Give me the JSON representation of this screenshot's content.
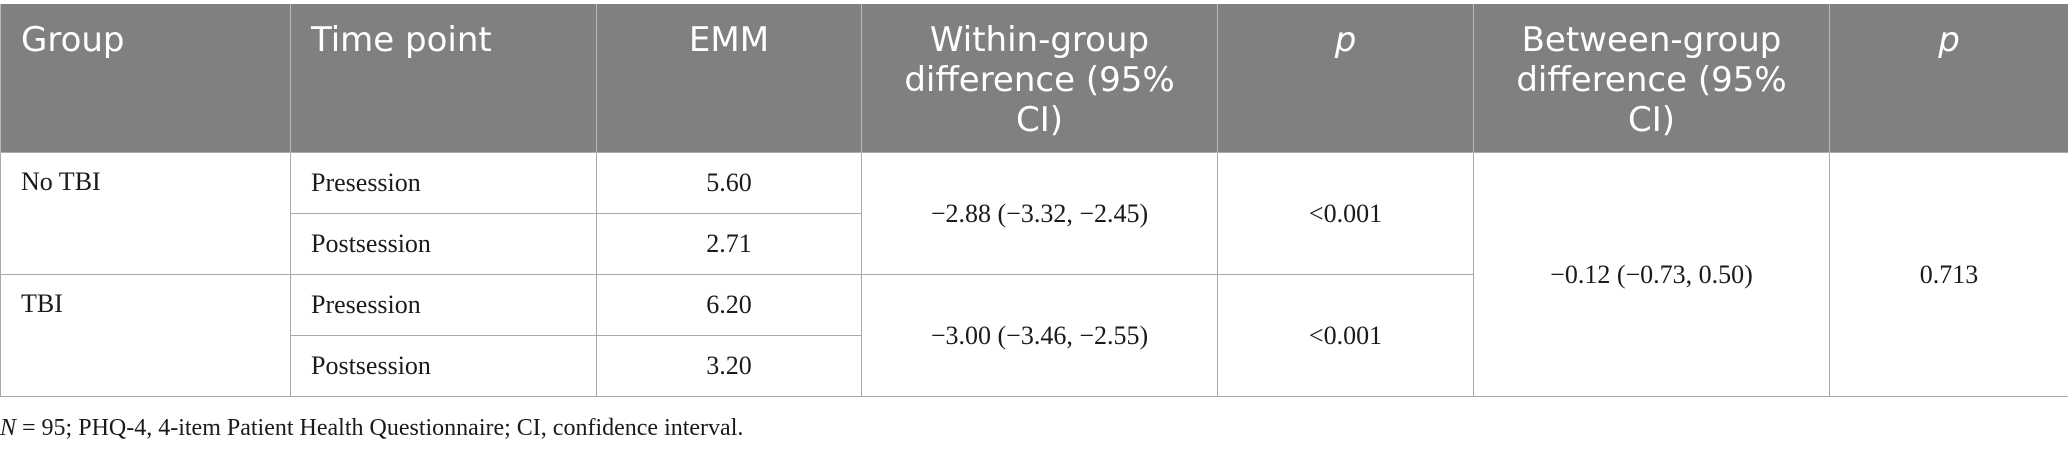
{
  "header": {
    "group": "Group",
    "time_point": "Time point",
    "emm": "EMM",
    "within_group": "Within-group difference (95% CI)",
    "p1": "p",
    "between_group": "Between-group difference (95% CI)",
    "p2": "p"
  },
  "rows": [
    {
      "group": "No TBI",
      "presession_label": "Presession",
      "presession_emm": "5.60",
      "postsession_label": "Postsession",
      "postsession_emm": "2.71",
      "within": "−2.88 (−3.32, −2.45)",
      "p": "<0.001"
    },
    {
      "group": "TBI",
      "presession_label": "Presession",
      "presession_emm": "6.20",
      "postsession_label": "Postsession",
      "postsession_emm": "3.20",
      "within": "−3.00 (−3.46, −2.55)",
      "p": "<0.001"
    }
  ],
  "between": {
    "difference": "−0.12 (−0.73, 0.50)",
    "p": "0.713"
  },
  "footnote": {
    "n_symbol": "N",
    "text": " = 95; PHQ-4, 4-item Patient Health Questionnaire; CI, confidence interval."
  },
  "colors": {
    "header_bg": "#7f807f",
    "header_text": "#ffffff",
    "border": "#a9a9a9"
  }
}
